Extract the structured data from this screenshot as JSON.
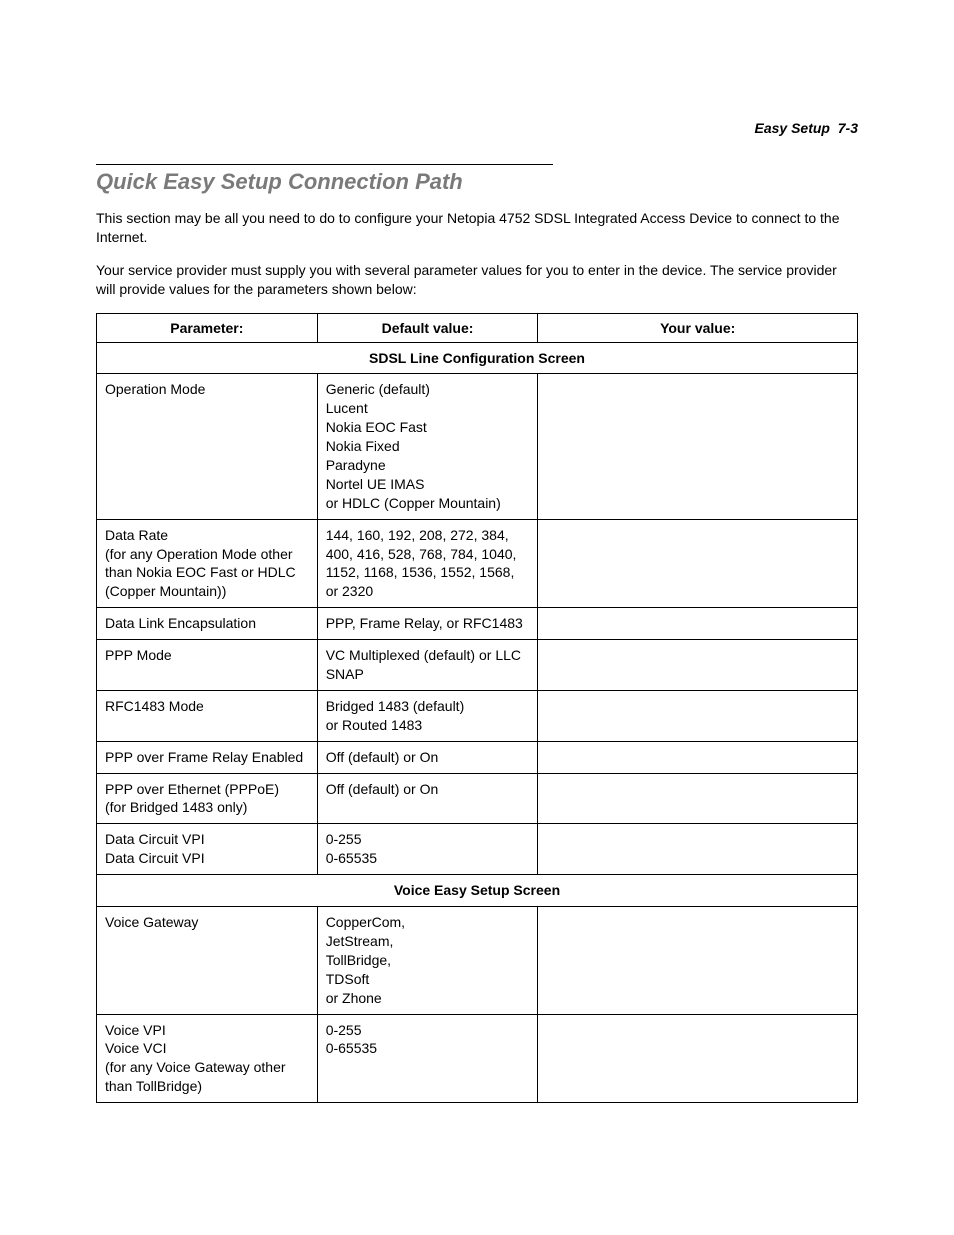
{
  "header": {
    "section_name": "Easy Setup",
    "page_ref": "7-3"
  },
  "title": "Quick Easy Setup Connection Path",
  "paragraphs": {
    "p1": "This section may be all you need to do to configure your Netopia 4752 SDSL Integrated Access Device to connect to the Internet.",
    "p2": "Your service provider must supply you with several parameter values for you to enter in the device. The service provider will provide values for the parameters shown below:"
  },
  "table": {
    "headers": {
      "param": "Parameter:",
      "default": "Default value:",
      "your": "Your value:"
    },
    "section1_title": "SDSL Line Configuration Screen",
    "rows1": [
      {
        "param": "Operation Mode",
        "default": "Generic (default)\nLucent\nNokia EOC Fast\nNokia Fixed\nParadyne\nNortel UE IMAS\nor HDLC (Copper Mountain)",
        "your": ""
      },
      {
        "param": "Data Rate\n(for any Operation Mode other than Nokia EOC Fast or HDLC (Copper Mountain))",
        "default": "144, 160, 192, 208, 272, 384, 400, 416, 528, 768, 784, 1040, 1152, 1168, 1536, 1552, 1568, or 2320",
        "your": ""
      },
      {
        "param": "Data Link Encapsulation",
        "default": "PPP, Frame Relay, or RFC1483",
        "your": ""
      },
      {
        "param": "PPP Mode",
        "default": "VC Multiplexed (default) or LLC SNAP",
        "your": ""
      },
      {
        "param": "RFC1483 Mode",
        "default": "Bridged 1483 (default)\nor Routed 1483",
        "your": ""
      },
      {
        "param": "PPP over Frame Relay Enabled",
        "default": "Off (default) or On",
        "your": ""
      },
      {
        "param": "PPP over Ethernet (PPPoE)\n(for Bridged 1483 only)",
        "default": "Off (default) or On",
        "your": ""
      },
      {
        "param": "Data Circuit VPI\nData Circuit VPI",
        "default": "0-255\n0-65535",
        "your": ""
      }
    ],
    "section2_title": "Voice Easy Setup Screen",
    "rows2": [
      {
        "param": "Voice Gateway",
        "default": "CopperCom,\nJetStream,\nTollBridge,\nTDSoft\nor Zhone",
        "your": ""
      },
      {
        "param": "Voice VPI\nVoice VCI\n(for any Voice Gateway other than TollBridge)",
        "default": "0-255\n0-65535",
        "your": ""
      }
    ]
  }
}
